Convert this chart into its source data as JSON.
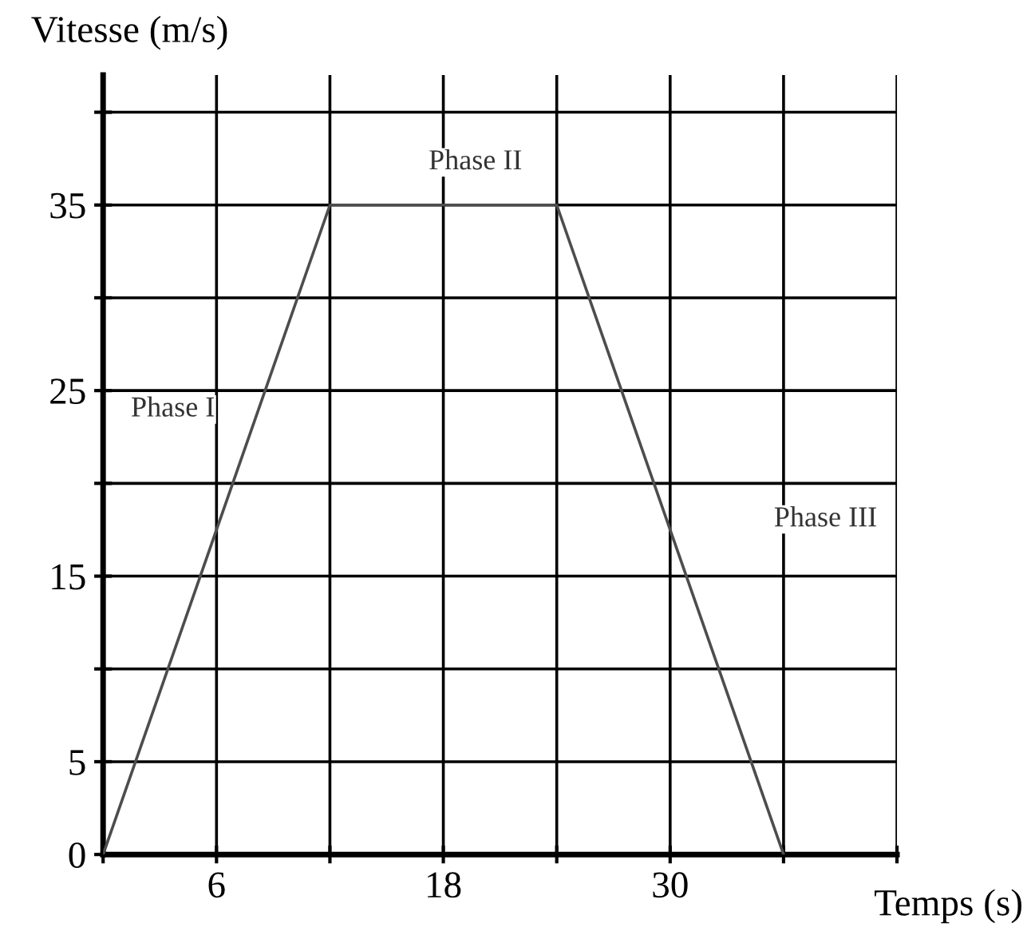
{
  "chart_data": {
    "type": "line",
    "xlabel": "Temps (s)",
    "ylabel": "Vitesse (m/s)",
    "x": [
      0,
      12,
      24,
      36
    ],
    "series": [
      {
        "color": "#4d4d4d",
        "values": [
          0,
          35,
          35,
          0
        ]
      }
    ],
    "xlim": [
      0,
      42
    ],
    "ylim": [
      0,
      42
    ],
    "xticks": [
      {
        "value": 0,
        "label": null
      },
      6,
      {
        "value": 12,
        "label": null
      },
      18,
      {
        "value": 24,
        "label": null
      },
      30,
      {
        "value": 36,
        "label": null
      },
      {
        "value": 42,
        "label": null
      }
    ],
    "yticks": [
      0,
      5,
      {
        "value": 10,
        "label": null
      },
      15,
      {
        "value": 20,
        "label": null
      },
      25,
      {
        "value": 30,
        "label": null
      },
      35,
      {
        "value": 40,
        "label": null
      }
    ],
    "grid": true,
    "marker": "none",
    "line_style": "solid",
    "annotations": [
      "Phase I",
      "Phase II",
      "Phase III"
    ]
  }
}
